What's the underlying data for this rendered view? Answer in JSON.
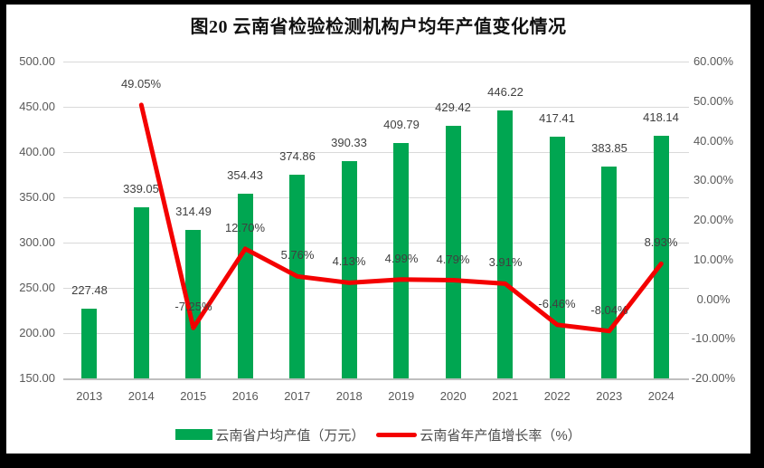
{
  "chart_data": {
    "type": "combo",
    "title": "图20  云南省检验检测机构户均年产值变化情况",
    "categories": [
      "2013",
      "2014",
      "2015",
      "2016",
      "2017",
      "2018",
      "2019",
      "2020",
      "2021",
      "2022",
      "2023",
      "2024"
    ],
    "series": [
      {
        "name": "云南省户均产值（万元）",
        "type": "bar",
        "axis": "left",
        "color": "#00A651",
        "values": [
          227.48,
          339.05,
          314.49,
          354.43,
          374.86,
          390.33,
          409.79,
          429.42,
          446.22,
          417.41,
          383.85,
          418.14
        ],
        "labels": [
          "227.48",
          "339.05",
          "314.49",
          "354.43",
          "374.86",
          "390.33",
          "409.79",
          "429.42",
          "446.22",
          "417.41",
          "383.85",
          "418.14"
        ]
      },
      {
        "name": "云南省年产值增长率（%）",
        "type": "line",
        "axis": "right",
        "color": "#F40000",
        "values": [
          null,
          49.05,
          -7.25,
          12.7,
          5.76,
          4.13,
          4.99,
          4.79,
          3.91,
          -6.46,
          -8.04,
          8.93
        ],
        "labels": [
          "",
          "49.05%",
          "-7.25%",
          "12.70%",
          "5.76%",
          "4.13%",
          "4.99%",
          "4.79%",
          "3.91%",
          "-6.46%",
          "-8.04%",
          "8.93%"
        ]
      }
    ],
    "left_axis": {
      "min": 150,
      "max": 500,
      "step": 50,
      "tick_labels": [
        "150.00",
        "200.00",
        "250.00",
        "300.00",
        "350.00",
        "400.00",
        "450.00",
        "500.00"
      ]
    },
    "right_axis": {
      "min": -20,
      "max": 60,
      "step": 10,
      "tick_labels": [
        "-20.00%",
        "-10.00%",
        "0.00%",
        "10.00%",
        "20.00%",
        "30.00%",
        "40.00%",
        "50.00%",
        "60.00%"
      ]
    },
    "grid": true,
    "legend_position": "bottom",
    "colors": {
      "gridline": "#d9d9d9",
      "axis_line": "#bfbfbf",
      "axis_text": "#595959",
      "data_label": "#404040",
      "frame": "#000000",
      "background": "#ffffff"
    }
  }
}
